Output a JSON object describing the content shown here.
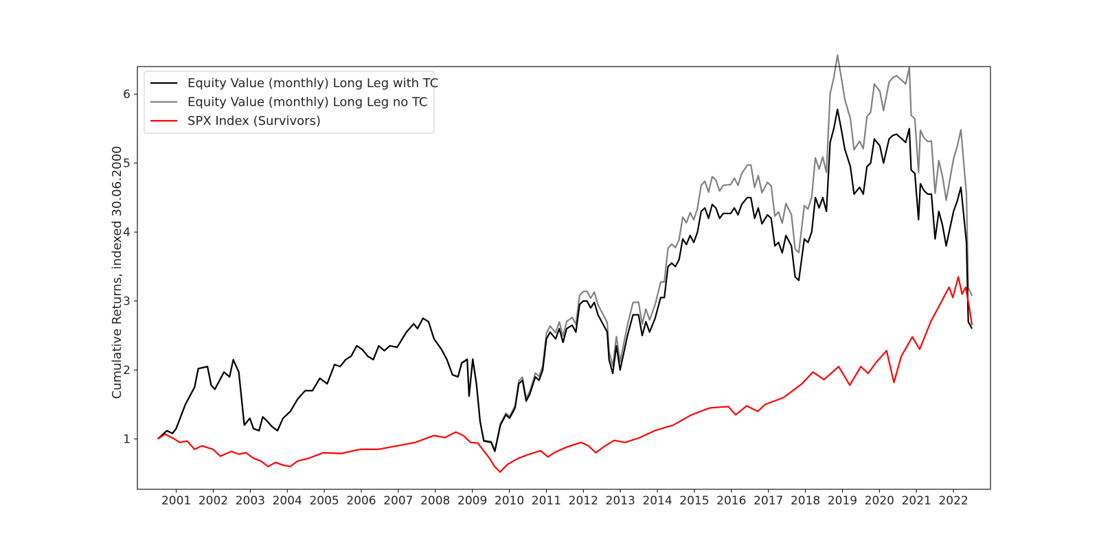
{
  "chart_data": {
    "type": "line",
    "title": "",
    "xlabel": "",
    "ylabel": "Cumulative Returns, indexed 30.06.2000",
    "x_range": [
      "2000-06-30",
      "2022-06-30"
    ],
    "xlim": [
      1999.95,
      2023.0
    ],
    "ylim": [
      0.27,
      6.4
    ],
    "x_ticks": [
      2001,
      2002,
      2003,
      2004,
      2005,
      2006,
      2007,
      2008,
      2009,
      2010,
      2011,
      2012,
      2013,
      2014,
      2015,
      2016,
      2017,
      2018,
      2019,
      2020,
      2021,
      2022
    ],
    "x_tick_labels": [
      "2001",
      "2002",
      "2003",
      "2004",
      "2005",
      "2006",
      "2007",
      "2008",
      "2009",
      "2010",
      "2011",
      "2012",
      "2013",
      "2014",
      "2015",
      "2016",
      "2017",
      "2018",
      "2019",
      "2020",
      "2021",
      "2022"
    ],
    "y_ticks": [
      1,
      2,
      3,
      4,
      5,
      6
    ],
    "y_tick_labels": [
      "1",
      "2",
      "3",
      "4",
      "5",
      "6"
    ],
    "grid": false,
    "legend_position": "top-left",
    "series": [
      {
        "name": "Equity Value (monthly) Long Leg with TC",
        "color": "#000000",
        "points": [
          [
            2000.5,
            1.0
          ],
          [
            2000.75,
            1.12
          ],
          [
            2000.9,
            1.08
          ],
          [
            2001.0,
            1.15
          ],
          [
            2001.25,
            1.5
          ],
          [
            2001.5,
            1.75
          ],
          [
            2001.6,
            2.02
          ],
          [
            2001.85,
            2.05
          ],
          [
            2001.95,
            1.78
          ],
          [
            2002.05,
            1.72
          ],
          [
            2002.3,
            1.97
          ],
          [
            2002.45,
            1.9
          ],
          [
            2002.55,
            2.15
          ],
          [
            2002.7,
            1.97
          ],
          [
            2002.85,
            1.2
          ],
          [
            2003.0,
            1.3
          ],
          [
            2003.1,
            1.15
          ],
          [
            2003.25,
            1.12
          ],
          [
            2003.35,
            1.32
          ],
          [
            2003.45,
            1.27
          ],
          [
            2003.6,
            1.18
          ],
          [
            2003.75,
            1.12
          ],
          [
            2003.9,
            1.3
          ],
          [
            2004.1,
            1.4
          ],
          [
            2004.3,
            1.58
          ],
          [
            2004.5,
            1.7
          ],
          [
            2004.7,
            1.7
          ],
          [
            2004.9,
            1.88
          ],
          [
            2005.1,
            1.8
          ],
          [
            2005.3,
            2.08
          ],
          [
            2005.45,
            2.05
          ],
          [
            2005.6,
            2.15
          ],
          [
            2005.75,
            2.2
          ],
          [
            2005.9,
            2.35
          ],
          [
            2006.05,
            2.3
          ],
          [
            2006.2,
            2.2
          ],
          [
            2006.35,
            2.15
          ],
          [
            2006.5,
            2.35
          ],
          [
            2006.65,
            2.28
          ],
          [
            2006.8,
            2.35
          ],
          [
            2007.0,
            2.33
          ],
          [
            2007.25,
            2.55
          ],
          [
            2007.45,
            2.67
          ],
          [
            2007.55,
            2.6
          ],
          [
            2007.7,
            2.75
          ],
          [
            2007.85,
            2.7
          ],
          [
            2008.0,
            2.45
          ],
          [
            2008.2,
            2.3
          ],
          [
            2008.35,
            2.15
          ],
          [
            2008.5,
            1.93
          ],
          [
            2008.65,
            1.9
          ],
          [
            2008.75,
            2.1
          ],
          [
            2008.9,
            2.15
          ],
          [
            2008.95,
            1.62
          ],
          [
            2009.05,
            2.15
          ],
          [
            2009.15,
            1.8
          ],
          [
            2009.25,
            1.25
          ],
          [
            2009.35,
            0.97
          ],
          [
            2009.55,
            0.95
          ],
          [
            2009.65,
            0.82
          ],
          [
            2009.8,
            1.2
          ],
          [
            2009.95,
            1.35
          ],
          [
            2010.05,
            1.3
          ],
          [
            2010.2,
            1.45
          ],
          [
            2010.3,
            1.8
          ],
          [
            2010.4,
            1.85
          ],
          [
            2010.5,
            1.55
          ],
          [
            2010.6,
            1.65
          ],
          [
            2010.75,
            1.9
          ],
          [
            2010.85,
            1.85
          ],
          [
            2010.95,
            2.0
          ],
          [
            2011.05,
            2.45
          ],
          [
            2011.15,
            2.55
          ],
          [
            2011.3,
            2.45
          ],
          [
            2011.4,
            2.6
          ],
          [
            2011.5,
            2.4
          ],
          [
            2011.6,
            2.6
          ],
          [
            2011.75,
            2.65
          ],
          [
            2011.85,
            2.55
          ],
          [
            2011.95,
            2.95
          ],
          [
            2012.05,
            3.0
          ],
          [
            2012.15,
            3.0
          ],
          [
            2012.25,
            2.9
          ],
          [
            2012.35,
            2.98
          ],
          [
            2012.45,
            2.8
          ],
          [
            2012.6,
            2.65
          ],
          [
            2012.7,
            2.55
          ],
          [
            2012.75,
            2.15
          ],
          [
            2012.85,
            1.95
          ],
          [
            2012.95,
            2.35
          ],
          [
            2013.05,
            2.0
          ],
          [
            2013.25,
            2.5
          ],
          [
            2013.4,
            2.8
          ],
          [
            2013.55,
            2.8
          ],
          [
            2013.65,
            2.5
          ],
          [
            2013.75,
            2.7
          ],
          [
            2013.85,
            2.55
          ],
          [
            2014.0,
            2.75
          ],
          [
            2014.15,
            3.05
          ],
          [
            2014.25,
            3.05
          ],
          [
            2014.35,
            3.5
          ],
          [
            2014.45,
            3.55
          ],
          [
            2014.55,
            3.5
          ],
          [
            2014.65,
            3.6
          ],
          [
            2014.75,
            3.9
          ],
          [
            2014.85,
            3.82
          ],
          [
            2014.95,
            3.95
          ],
          [
            2015.05,
            3.85
          ],
          [
            2015.15,
            4.0
          ],
          [
            2015.25,
            4.3
          ],
          [
            2015.35,
            4.35
          ],
          [
            2015.45,
            4.2
          ],
          [
            2015.55,
            4.4
          ],
          [
            2015.65,
            4.35
          ],
          [
            2015.75,
            4.2
          ],
          [
            2015.85,
            4.27
          ],
          [
            2016.05,
            4.27
          ],
          [
            2016.15,
            4.35
          ],
          [
            2016.25,
            4.25
          ],
          [
            2016.35,
            4.4
          ],
          [
            2016.5,
            4.5
          ],
          [
            2016.6,
            4.5
          ],
          [
            2016.7,
            4.2
          ],
          [
            2016.8,
            4.35
          ],
          [
            2016.9,
            4.12
          ],
          [
            2017.05,
            4.25
          ],
          [
            2017.15,
            4.2
          ],
          [
            2017.25,
            3.8
          ],
          [
            2017.35,
            3.85
          ],
          [
            2017.45,
            3.7
          ],
          [
            2017.55,
            3.95
          ],
          [
            2017.7,
            3.8
          ],
          [
            2017.8,
            3.35
          ],
          [
            2017.9,
            3.3
          ],
          [
            2018.05,
            3.9
          ],
          [
            2018.15,
            3.85
          ],
          [
            2018.25,
            4.0
          ],
          [
            2018.35,
            4.5
          ],
          [
            2018.45,
            4.35
          ],
          [
            2018.55,
            4.5
          ],
          [
            2018.65,
            4.3
          ],
          [
            2018.75,
            5.3
          ],
          [
            2018.85,
            5.5
          ],
          [
            2018.95,
            5.78
          ],
          [
            2019.05,
            5.5
          ],
          [
            2019.15,
            5.2
          ],
          [
            2019.3,
            4.95
          ],
          [
            2019.4,
            4.55
          ],
          [
            2019.55,
            4.65
          ],
          [
            2019.65,
            4.55
          ],
          [
            2019.75,
            4.95
          ],
          [
            2019.85,
            5.0
          ],
          [
            2019.95,
            5.35
          ],
          [
            2020.1,
            5.25
          ],
          [
            2020.2,
            5.0
          ],
          [
            2020.35,
            5.35
          ],
          [
            2020.45,
            5.4
          ],
          [
            2020.55,
            5.42
          ],
          [
            2020.7,
            5.35
          ],
          [
            2020.8,
            5.3
          ],
          [
            2020.9,
            5.5
          ],
          [
            2020.95,
            4.9
          ],
          [
            2021.05,
            4.85
          ],
          [
            2021.15,
            4.18
          ],
          [
            2021.2,
            4.7
          ],
          [
            2021.3,
            4.6
          ],
          [
            2021.4,
            4.55
          ],
          [
            2021.5,
            4.55
          ],
          [
            2021.6,
            3.9
          ],
          [
            2021.7,
            4.3
          ],
          [
            2021.8,
            4.1
          ],
          [
            2021.9,
            3.8
          ],
          [
            2022.0,
            4.05
          ],
          [
            2022.1,
            4.3
          ],
          [
            2022.2,
            4.45
          ],
          [
            2022.3,
            4.65
          ],
          [
            2022.45,
            3.85
          ],
          [
            2022.5,
            2.7
          ],
          [
            2022.6,
            2.6
          ]
        ]
      },
      {
        "name": "Equity Value (monthly) Long Leg no TC",
        "color": "#808080",
        "points": []
      },
      {
        "name": "SPX Index (Survivors)",
        "color": "#ff0000",
        "points": []
      }
    ]
  }
}
